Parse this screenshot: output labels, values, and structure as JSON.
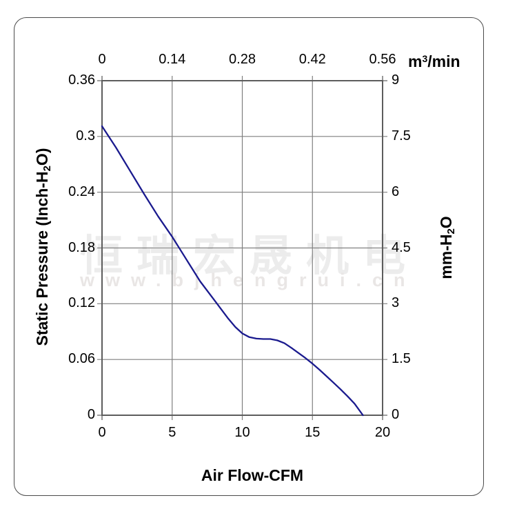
{
  "watermark": {
    "company": "恒瑞宏晟机电",
    "url": "www.bjhengrui.cn"
  },
  "colors": {
    "curve": "#1a1a8e",
    "grid": "#7f7f7f",
    "plot_border": "#5c5c5c",
    "frame_border": "#4a4a4a",
    "text": "#000000",
    "watermark_cn": "#ececec",
    "watermark_url": "#e9e6e5"
  },
  "chart_data": {
    "type": "line",
    "title": "",
    "grid": true,
    "legend": "none",
    "axes": {
      "bottom": {
        "label": "Air Flow-CFM",
        "ticks": [
          "0",
          "5",
          "10",
          "15",
          "20"
        ],
        "range": [
          0,
          20
        ]
      },
      "top": {
        "label_pre": "m",
        "label_sup": "3",
        "label_post": "/min",
        "ticks": [
          "0",
          "0.14",
          "0.28",
          "0.42",
          "0.56"
        ],
        "range": [
          0,
          0.56
        ]
      },
      "left": {
        "label_pre": "Static Pressure (Inch-H",
        "label_sub": "2",
        "label_post": "O)",
        "ticks": [
          "0.36",
          "0.3",
          "0.24",
          "0.18",
          "0.12",
          "0.06",
          "0"
        ],
        "range": [
          0,
          0.36
        ]
      },
      "right": {
        "label_pre": "mm-H",
        "label_sub": "2",
        "label_post": "O",
        "ticks": [
          "9",
          "7.5",
          "6",
          "4.5",
          "3",
          "1.5",
          "0"
        ],
        "range": [
          0,
          9
        ]
      }
    },
    "series": [
      {
        "name": "static-pressure-vs-airflow",
        "x_unit": "CFM",
        "y_unit": "Inch-H2O",
        "points": [
          [
            0,
            0.311
          ],
          [
            1,
            0.288
          ],
          [
            2,
            0.263
          ],
          [
            3,
            0.238
          ],
          [
            4,
            0.214
          ],
          [
            5,
            0.192
          ],
          [
            6,
            0.168
          ],
          [
            7,
            0.144
          ],
          [
            8,
            0.124
          ],
          [
            9,
            0.104
          ],
          [
            9.5,
            0.095
          ],
          [
            10,
            0.088
          ],
          [
            10.5,
            0.084
          ],
          [
            11,
            0.0825
          ],
          [
            11.5,
            0.082
          ],
          [
            12,
            0.082
          ],
          [
            12.5,
            0.0805
          ],
          [
            13,
            0.0775
          ],
          [
            13.5,
            0.0725
          ],
          [
            14,
            0.067
          ],
          [
            14.5,
            0.0615
          ],
          [
            15,
            0.0555
          ],
          [
            15.5,
            0.049
          ],
          [
            16,
            0.042
          ],
          [
            16.5,
            0.035
          ],
          [
            17,
            0.028
          ],
          [
            17.5,
            0.0205
          ],
          [
            18,
            0.0125
          ],
          [
            18.6,
            0
          ]
        ]
      }
    ]
  }
}
